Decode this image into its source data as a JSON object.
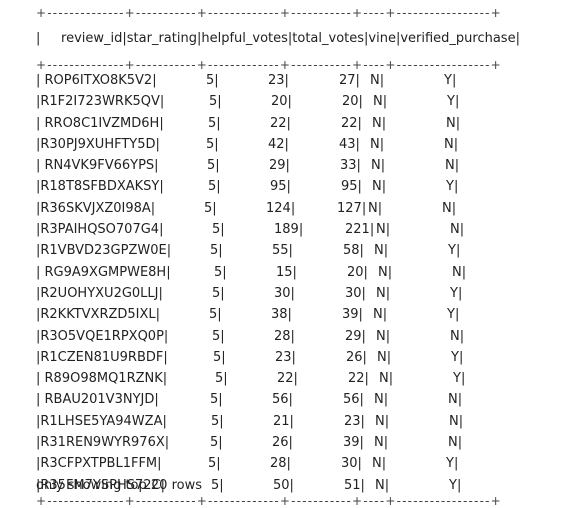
{
  "table": {
    "border_top": "+--------------+-----------+-------------+-----------+----+-----------------+",
    "header": "|     review_id|star_rating|helpful_votes|total_votes|vine|verified_purchase|",
    "border_mid": "+--------------+-----------+-------------+-----------+----+-----------------+",
    "rows": [
      {
        "review_id": "| ROP6ITXO8K5V2|",
        "star_rating": "5|",
        "helpful_votes": "23|",
        "total_votes": "27|",
        "vine": "N|",
        "verified_purchase": "Y|"
      },
      {
        "review_id": "|R1F2I723WRK5QV|",
        "star_rating": "5|",
        "helpful_votes": "20|",
        "total_votes": "20|",
        "vine": "N|",
        "verified_purchase": "Y|"
      },
      {
        "review_id": "| RRO8C1IVZMD6H|",
        "star_rating": "5|",
        "helpful_votes": "22|",
        "total_votes": "22|",
        "vine": "N|",
        "verified_purchase": "N|"
      },
      {
        "review_id": "|R30PJ9XUHFTY5D|",
        "star_rating": "5|",
        "helpful_votes": "42|",
        "total_votes": "43|",
        "vine": "N|",
        "verified_purchase": "N|"
      },
      {
        "review_id": "| RN4VK9FV66YPS|",
        "star_rating": "5|",
        "helpful_votes": "29|",
        "total_votes": "33|",
        "vine": "N|",
        "verified_purchase": "N|"
      },
      {
        "review_id": "|R18T8SFBDXAKSY|",
        "star_rating": "5|",
        "helpful_votes": "95|",
        "total_votes": "95|",
        "vine": "N|",
        "verified_purchase": "Y|"
      },
      {
        "review_id": "|R36SKVJXZ0I98A|",
        "star_rating": "5|",
        "helpful_votes": "124|",
        "total_votes": "127|",
        "vine": "N|",
        "verified_purchase": "N|"
      },
      {
        "review_id": "|R3PAIHQSO707G4|",
        "star_rating": "5|",
        "helpful_votes": "189|",
        "total_votes": "221|",
        "vine": "N|",
        "verified_purchase": "N|"
      },
      {
        "review_id": "|R1VBVD23GPZW0E|",
        "star_rating": "5|",
        "helpful_votes": "55|",
        "total_votes": "58|",
        "vine": "N|",
        "verified_purchase": "Y|"
      },
      {
        "review_id": "| RG9A9XGMPWE8H|",
        "star_rating": "5|",
        "helpful_votes": "15|",
        "total_votes": "20|",
        "vine": "N|",
        "verified_purchase": "N|"
      },
      {
        "review_id": "|R2UOHYXU2G0LLJ|",
        "star_rating": "5|",
        "helpful_votes": "30|",
        "total_votes": "30|",
        "vine": "N|",
        "verified_purchase": "Y|"
      },
      {
        "review_id": "|R2KKTVXRZD5IXL|",
        "star_rating": "5|",
        "helpful_votes": "38|",
        "total_votes": "39|",
        "vine": "N|",
        "verified_purchase": "Y|"
      },
      {
        "review_id": "|R3O5VQE1RPXQ0P|",
        "star_rating": "5|",
        "helpful_votes": "28|",
        "total_votes": "29|",
        "vine": "N|",
        "verified_purchase": "N|"
      },
      {
        "review_id": "|R1CZEN81U9RBDF|",
        "star_rating": "5|",
        "helpful_votes": "23|",
        "total_votes": "26|",
        "vine": "N|",
        "verified_purchase": "Y|"
      },
      {
        "review_id": "| R89O98MQ1RZNK|",
        "star_rating": "5|",
        "helpful_votes": "22|",
        "total_votes": "22|",
        "vine": "N|",
        "verified_purchase": "Y|"
      },
      {
        "review_id": "| RBAU201V3NYJD|",
        "star_rating": "5|",
        "helpful_votes": "56|",
        "total_votes": "56|",
        "vine": "N|",
        "verified_purchase": "N|"
      },
      {
        "review_id": "|R1LHSE5YA94WZA|",
        "star_rating": "5|",
        "helpful_votes": "21|",
        "total_votes": "23|",
        "vine": "N|",
        "verified_purchase": "N|"
      },
      {
        "review_id": "|R31REN9WYR976X|",
        "star_rating": "5|",
        "helpful_votes": "26|",
        "total_votes": "39|",
        "vine": "N|",
        "verified_purchase": "N|"
      },
      {
        "review_id": "|R3CFPXTPBL1FFM|",
        "star_rating": "5|",
        "helpful_votes": "28|",
        "total_votes": "30|",
        "vine": "N|",
        "verified_purchase": "Y|"
      },
      {
        "review_id": "|R35FM7YSPHS72C|",
        "star_rating": "5|",
        "helpful_votes": "50|",
        "total_votes": "51|",
        "vine": "N|",
        "verified_purchase": "Y|"
      }
    ],
    "border_bottom": "+--------------+-----------+-------------+-----------+----+-----------------+"
  },
  "footer": "only showing top 20 rows"
}
